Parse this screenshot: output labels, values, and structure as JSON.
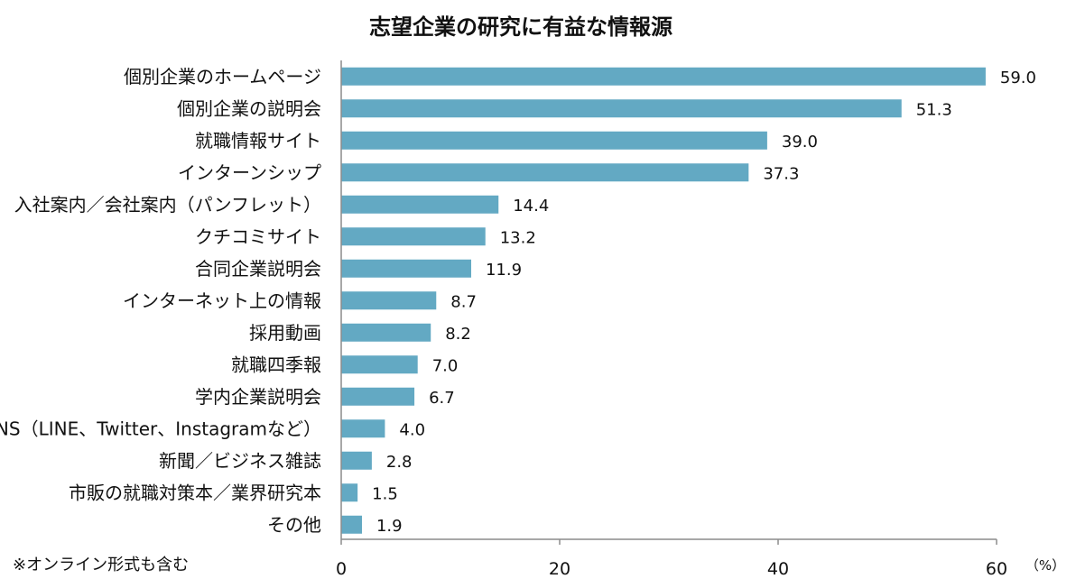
{
  "chart_data": {
    "type": "bar",
    "orientation": "horizontal",
    "title": "志望企業の研究に有益な情報源",
    "categories": [
      "個別企業のホームページ",
      "個別企業の説明会",
      "就職情報サイト",
      "インターンシップ",
      "入社案内／会社案内（パンフレット）",
      "クチコミサイト",
      "合同企業説明会",
      "インターネット上の情報",
      "採用動画",
      "就職四季報",
      "学内企業説明会",
      "SNS（LINE、Twitter、Instagramなど）",
      "新聞／ビジネス雑誌",
      "市販の就職対策本／業界研究本",
      "その他"
    ],
    "values": [
      59.0,
      51.3,
      39.0,
      37.3,
      14.4,
      13.2,
      11.9,
      8.7,
      8.2,
      7.0,
      6.7,
      4.0,
      2.8,
      1.5,
      1.9
    ],
    "value_labels": [
      "59.0",
      "51.3",
      "39.0",
      "37.3",
      "14.4",
      "13.2",
      "11.9",
      "8.7",
      "8.2",
      "7.0",
      "6.7",
      "4.0",
      "2.8",
      "1.5",
      "1.9"
    ],
    "xlim": [
      0,
      60
    ],
    "xticks": [
      0,
      20,
      40,
      60
    ],
    "xtick_labels": [
      "0",
      "20",
      "40",
      "60"
    ],
    "unit_label": "（%）",
    "footnote": "※オンライン形式も含む",
    "grid": false,
    "bar_color": "#63a9c3"
  }
}
